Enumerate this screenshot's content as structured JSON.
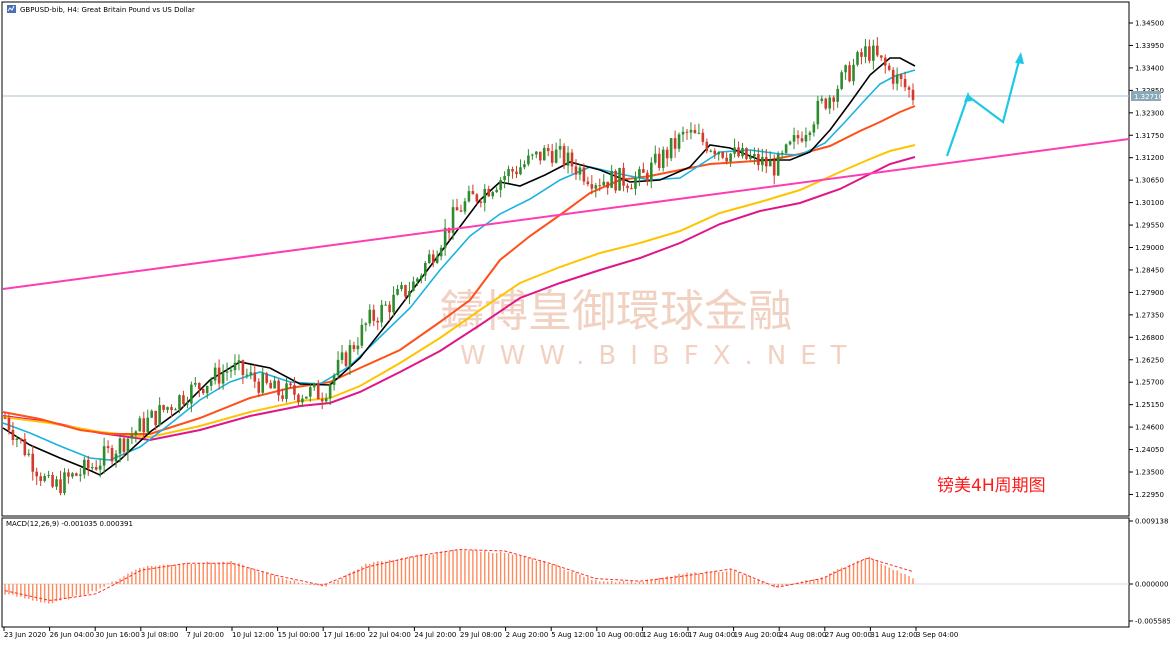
{
  "window": {
    "title": "GBPUSD-bib, H4:  Great Britain Pound vs US Dollar"
  },
  "annotation": {
    "chart_note": "镑美4H周期图",
    "watermark_cn": "鑄博皇御環球金融",
    "watermark_en": "WWW.BIBFX.NET"
  },
  "colors": {
    "bull_candle": "#2e8b2e",
    "bear_candle": "#d23b2b",
    "ma_black": "#000000",
    "ma_cyan": "#1ab2e0",
    "ma_red": "#ff4f1a",
    "ma_yellow": "#ffc400",
    "ma_magenta": "#e0158a",
    "trendline": "#ff3cb4",
    "forecast_arrow": "#1ec8e6",
    "macd_hist": "#ff8a5c",
    "macd_signal": "#ff2a2a",
    "current_price_line": "#a9c2d0"
  },
  "price_axis": {
    "ticks": [
      "1.34500",
      "1.33950",
      "1.33400",
      "1.32850",
      "1.32300",
      "1.31750",
      "1.31200",
      "1.30650",
      "1.30100",
      "1.29550",
      "1.29000",
      "1.28450",
      "1.27900",
      "1.27350",
      "1.26800",
      "1.26250",
      "1.25700",
      "1.25150",
      "1.24600",
      "1.24050",
      "1.23500",
      "1.22950"
    ],
    "current_price_label": "1.32710"
  },
  "time_axis": {
    "ticks": [
      "23 Jun 2020",
      "26 Jun 04:00",
      "30 Jun 16:00",
      "3 Jul 08:00",
      "7 Jul 20:00",
      "10 Jul 12:00",
      "15 Jul 00:00",
      "17 Jul 16:00",
      "22 Jul 04:00",
      "24 Jul 20:00",
      "29 Jul 08:00",
      "2 Aug 20:00",
      "5 Aug 12:00",
      "10 Aug 00:00",
      "12 Aug 16:00",
      "17 Aug 04:00",
      "19 Aug 20:00",
      "24 Aug 08:00",
      "27 Aug 00:00",
      "31 Aug 12:00",
      "3 Sep 04:00"
    ]
  },
  "macd_panel": {
    "label": "MACD(12,26,9) -0.001035 0.000391",
    "ticks": [
      "0.009138",
      "0.000000",
      "-0.005585"
    ]
  },
  "chart_data": {
    "type": "candlestick",
    "symbol": "GBPUSD",
    "timeframe": "H4",
    "ylim": [
      1.2275,
      1.3475
    ],
    "close_path": [
      {
        "x": "23 Jun 2020",
        "y": 1.25
      },
      {
        "x": "26 Jun 04:00",
        "y": 1.233
      },
      {
        "x": "30 Jun 16:00",
        "y": 1.239
      },
      {
        "x": "3 Jul 08:00",
        "y": 1.248
      },
      {
        "x": "7 Jul 20:00",
        "y": 1.256
      },
      {
        "x": "10 Jul 12:00",
        "y": 1.262
      },
      {
        "x": "15 Jul 00:00",
        "y": 1.256
      },
      {
        "x": "17 Jul 16:00",
        "y": 1.256
      },
      {
        "x": "22 Jul 04:00",
        "y": 1.273
      },
      {
        "x": "24 Jul 20:00",
        "y": 1.282
      },
      {
        "x": "29 Jul 08:00",
        "y": 1.3
      },
      {
        "x": "2 Aug 20:00",
        "y": 1.308
      },
      {
        "x": "5 Aug 12:00",
        "y": 1.314
      },
      {
        "x": "10 Aug 00:00",
        "y": 1.307
      },
      {
        "x": "12 Aug 16:00",
        "y": 1.307
      },
      {
        "x": "17 Aug 04:00",
        "y": 1.318
      },
      {
        "x": "19 Aug 20:00",
        "y": 1.313
      },
      {
        "x": "24 Aug 08:00",
        "y": 1.31
      },
      {
        "x": "27 Aug 00:00",
        "y": 1.325
      },
      {
        "x": "31 Aug 12:00",
        "y": 1.338
      },
      {
        "x": "3 Sep 04:00",
        "y": 1.3271
      }
    ],
    "macd": {
      "ylim": [
        -0.005585,
        0.009138
      ],
      "histogram": [
        -0.0015,
        -0.003,
        -0.001,
        0.0025,
        0.003,
        0.0032,
        0.001,
        -0.0005,
        0.003,
        0.004,
        0.005,
        0.0045,
        0.003,
        0.0005,
        0.0003,
        0.0015,
        0.002,
        -0.0005,
        0.001,
        0.004,
        0.0008
      ],
      "signal": [
        -0.001,
        -0.0025,
        -0.0015,
        0.002,
        0.003,
        0.003,
        0.0012,
        -0.0002,
        0.0025,
        0.004,
        0.005,
        0.0048,
        0.003,
        0.0008,
        0.0004,
        0.0012,
        0.0022,
        -0.0005,
        0.0008,
        0.0038,
        0.0018
      ]
    }
  }
}
